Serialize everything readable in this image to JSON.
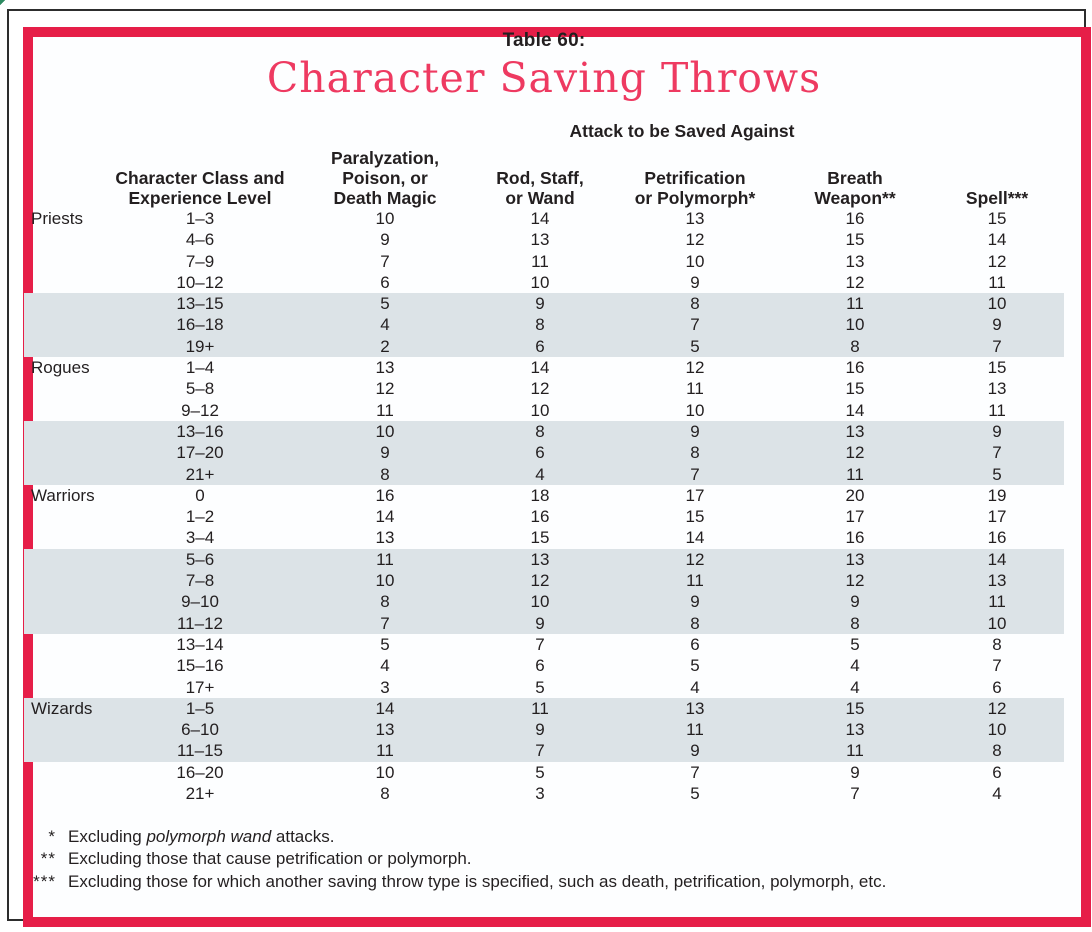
{
  "page": {
    "table_label": "Table 60:",
    "title": "Character Saving Throws"
  },
  "colors": {
    "frame_red": "#e61e48",
    "title_red": "#ee3a61",
    "row_shade": "#dce3e7",
    "ink": "#231f20"
  },
  "table": {
    "spanner": "Attack to be Saved Against",
    "col_headers": {
      "class_level": [
        "Character Class and",
        "Experience Level"
      ],
      "paralyzation": [
        "Paralyzation,",
        "Poison, or",
        "Death Magic"
      ],
      "rod": [
        "Rod, Staff,",
        "or Wand"
      ],
      "petrification": [
        "Petrification",
        "or Polymorph*"
      ],
      "breath": [
        "Breath",
        "Weapon**"
      ],
      "spell": [
        "Spell***"
      ]
    },
    "groups": [
      {
        "name": "Priests",
        "rows": [
          {
            "level": "1–3",
            "values": [
              10,
              14,
              13,
              16,
              15
            ],
            "shaded": false
          },
          {
            "level": "4–6",
            "values": [
              9,
              13,
              12,
              15,
              14
            ],
            "shaded": false
          },
          {
            "level": "7–9",
            "values": [
              7,
              11,
              10,
              13,
              12
            ],
            "shaded": false
          },
          {
            "level": "10–12",
            "values": [
              6,
              10,
              9,
              12,
              11
            ],
            "shaded": false
          },
          {
            "level": "13–15",
            "values": [
              5,
              9,
              8,
              11,
              10
            ],
            "shaded": true
          },
          {
            "level": "16–18",
            "values": [
              4,
              8,
              7,
              10,
              9
            ],
            "shaded": true
          },
          {
            "level": "19+",
            "values": [
              2,
              6,
              5,
              8,
              7
            ],
            "shaded": true
          }
        ]
      },
      {
        "name": "Rogues",
        "rows": [
          {
            "level": "1–4",
            "values": [
              13,
              14,
              12,
              16,
              15
            ],
            "shaded": false
          },
          {
            "level": "5–8",
            "values": [
              12,
              12,
              11,
              15,
              13
            ],
            "shaded": false
          },
          {
            "level": "9–12",
            "values": [
              11,
              10,
              10,
              14,
              11
            ],
            "shaded": false
          },
          {
            "level": "13–16",
            "values": [
              10,
              8,
              9,
              13,
              9
            ],
            "shaded": true
          },
          {
            "level": "17–20",
            "values": [
              9,
              6,
              8,
              12,
              7
            ],
            "shaded": true
          },
          {
            "level": "21+",
            "values": [
              8,
              4,
              7,
              11,
              5
            ],
            "shaded": true
          }
        ]
      },
      {
        "name": "Warriors",
        "rows": [
          {
            "level": "0",
            "values": [
              16,
              18,
              17,
              20,
              19
            ],
            "shaded": false
          },
          {
            "level": "1–2",
            "values": [
              14,
              16,
              15,
              17,
              17
            ],
            "shaded": false
          },
          {
            "level": "3–4",
            "values": [
              13,
              15,
              14,
              16,
              16
            ],
            "shaded": false
          },
          {
            "level": "5–6",
            "values": [
              11,
              13,
              12,
              13,
              14
            ],
            "shaded": true
          },
          {
            "level": "7–8",
            "values": [
              10,
              12,
              11,
              12,
              13
            ],
            "shaded": true
          },
          {
            "level": "9–10",
            "values": [
              8,
              10,
              9,
              9,
              11
            ],
            "shaded": true
          },
          {
            "level": "11–12",
            "values": [
              7,
              9,
              8,
              8,
              10
            ],
            "shaded": true
          },
          {
            "level": "13–14",
            "values": [
              5,
              7,
              6,
              5,
              8
            ],
            "shaded": false
          },
          {
            "level": "15–16",
            "values": [
              4,
              6,
              5,
              4,
              7
            ],
            "shaded": false
          },
          {
            "level": "17+",
            "values": [
              3,
              5,
              4,
              4,
              6
            ],
            "shaded": false
          }
        ]
      },
      {
        "name": "Wizards",
        "rows": [
          {
            "level": "1–5",
            "values": [
              14,
              11,
              13,
              15,
              12
            ],
            "shaded": true
          },
          {
            "level": "6–10",
            "values": [
              13,
              9,
              11,
              13,
              10
            ],
            "shaded": true
          },
          {
            "level": "11–15",
            "values": [
              11,
              7,
              9,
              11,
              8
            ],
            "shaded": true
          },
          {
            "level": "16–20",
            "values": [
              10,
              5,
              7,
              9,
              6
            ],
            "shaded": false
          },
          {
            "level": "21+",
            "values": [
              8,
              3,
              5,
              7,
              4
            ],
            "shaded": false
          }
        ]
      }
    ]
  },
  "footnotes": [
    {
      "marker": "*",
      "pre": "Excluding ",
      "italic": "polymorph wand",
      "post": " attacks."
    },
    {
      "marker": "**",
      "pre": "Excluding those that cause petrification or polymorph.",
      "italic": "",
      "post": ""
    },
    {
      "marker": "***",
      "pre": "Excluding those for which another saving throw type is specified, such as death, petrification, polymorph, etc.",
      "italic": "",
      "post": ""
    }
  ]
}
